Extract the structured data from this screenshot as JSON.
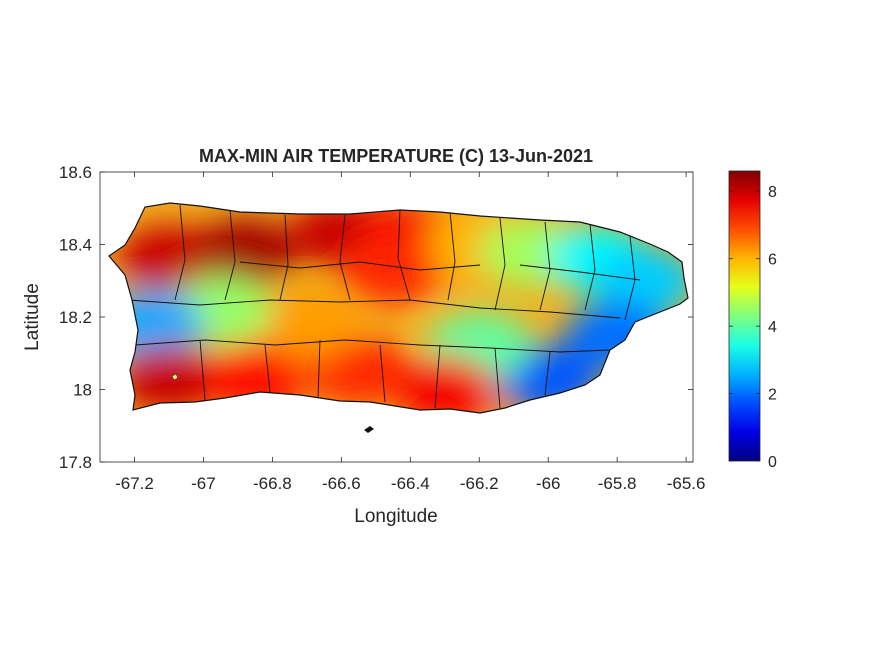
{
  "chart_data": {
    "type": "heatmap",
    "title": "MAX-MIN AIR TEMPERATURE (C) 13-Jun-2021",
    "xlabel": "Longitude",
    "ylabel": "Latitude",
    "xlim": [
      -67.3,
      -65.58
    ],
    "ylim": [
      17.8,
      18.6
    ],
    "xticks": [
      -67.2,
      -67,
      -66.8,
      -66.6,
      -66.4,
      -66.2,
      -66,
      -65.8,
      -65.6
    ],
    "xtick_labels": [
      "-67.2",
      "-67",
      "-66.8",
      "-66.6",
      "-66.4",
      "-66.2",
      "-66",
      "-65.8",
      "-65.6"
    ],
    "yticks": [
      17.8,
      18,
      18.2,
      18.4,
      18.6
    ],
    "ytick_labels": [
      "17.8",
      "18",
      "18.2",
      "18.4",
      "18.6"
    ],
    "colorbar": {
      "colormap": "jet",
      "range": [
        0,
        8.6
      ],
      "ticks": [
        0,
        2,
        4,
        6,
        8
      ],
      "tick_labels": [
        "0",
        "2",
        "4",
        "6",
        "8"
      ]
    },
    "grid": false,
    "regions": [
      {
        "lon": -67.1,
        "lat": 18.36,
        "value": 8.0
      },
      {
        "lon": -66.88,
        "lat": 18.38,
        "value": 8.3
      },
      {
        "lon": -66.6,
        "lat": 18.43,
        "value": 8.0
      },
      {
        "lon": -66.4,
        "lat": 18.42,
        "value": 7.6
      },
      {
        "lon": -66.45,
        "lat": 18.33,
        "value": 7.2
      },
      {
        "lon": -66.2,
        "lat": 18.4,
        "value": 6.0
      },
      {
        "lon": -66.05,
        "lat": 18.38,
        "value": 4.6
      },
      {
        "lon": -65.85,
        "lat": 18.36,
        "value": 3.2
      },
      {
        "lon": -65.72,
        "lat": 18.3,
        "value": 2.8
      },
      {
        "lon": -65.8,
        "lat": 18.15,
        "value": 2.0
      },
      {
        "lon": -66.0,
        "lat": 18.03,
        "value": 1.8
      },
      {
        "lon": -66.2,
        "lat": 18.12,
        "value": 4.0
      },
      {
        "lon": -66.3,
        "lat": 18.0,
        "value": 7.6
      },
      {
        "lon": -66.55,
        "lat": 18.05,
        "value": 7.2
      },
      {
        "lon": -66.7,
        "lat": 18.18,
        "value": 6.2
      },
      {
        "lon": -66.95,
        "lat": 18.22,
        "value": 4.5
      },
      {
        "lon": -67.15,
        "lat": 18.18,
        "value": 2.5
      },
      {
        "lon": -67.1,
        "lat": 18.03,
        "value": 8.0
      },
      {
        "lon": -66.85,
        "lat": 18.03,
        "value": 7.4
      }
    ]
  }
}
